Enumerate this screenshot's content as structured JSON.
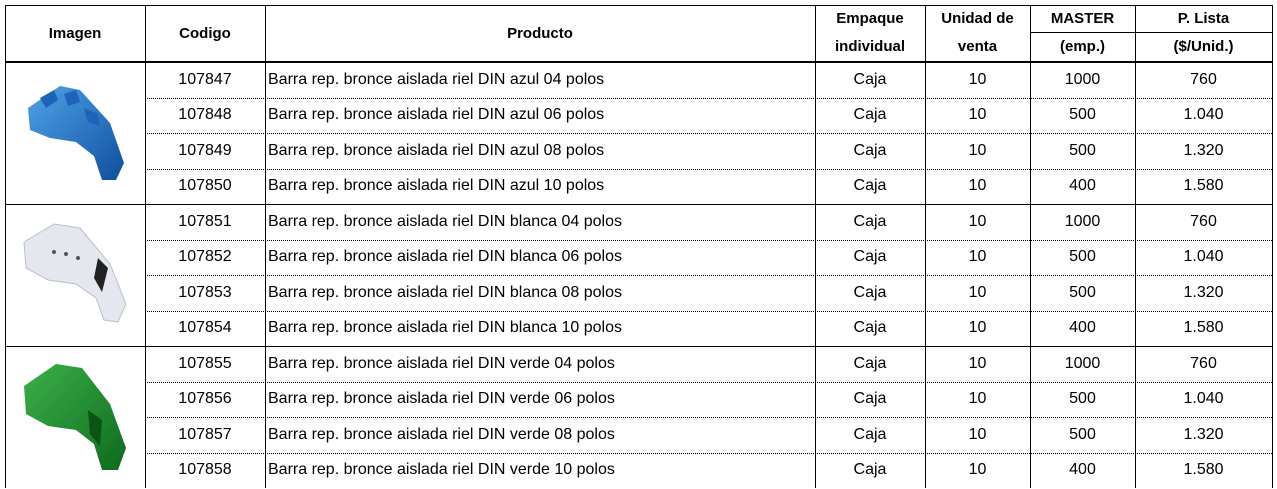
{
  "header": {
    "columns": [
      {
        "lines": [
          "Imagen"
        ]
      },
      {
        "lines": [
          "Codigo"
        ]
      },
      {
        "lines": [
          "Producto"
        ]
      },
      {
        "lines": [
          "Empaque",
          "individual"
        ]
      },
      {
        "lines": [
          "Unidad de",
          "venta"
        ]
      },
      {
        "lines": [
          "MASTER",
          "(emp.)"
        ]
      },
      {
        "lines": [
          "P. Lista",
          "($/Unid.)"
        ]
      }
    ]
  },
  "table": {
    "rows": [
      [
        "107847",
        "Barra rep. bronce aislada riel DIN azul 04 polos",
        "Caja",
        "10",
        "1000",
        "760"
      ],
      [
        "107848",
        "Barra rep. bronce aislada riel DIN azul 06 polos",
        "Caja",
        "10",
        "500",
        "1.040"
      ],
      [
        "107849",
        "Barra rep. bronce aislada riel DIN azul 08 polos",
        "Caja",
        "10",
        "500",
        "1.320"
      ],
      [
        "107850",
        "Barra rep. bronce aislada riel DIN azul 10 polos",
        "Caja",
        "10",
        "400",
        "1.580"
      ],
      [
        "107851",
        "Barra rep. bronce aislada riel DIN blanca 04 polos",
        "Caja",
        "10",
        "1000",
        "760"
      ],
      [
        "107852",
        "Barra rep. bronce aislada riel DIN blanca 06 polos",
        "Caja",
        "10",
        "500",
        "1.040"
      ],
      [
        "107853",
        "Barra rep. bronce aislada riel DIN blanca 08 polos",
        "Caja",
        "10",
        "500",
        "1.320"
      ],
      [
        "107854",
        "Barra rep. bronce aislada riel DIN blanca 10 polos",
        "Caja",
        "10",
        "400",
        "1.580"
      ],
      [
        "107855",
        "Barra rep. bronce aislada riel DIN verde 04 polos",
        "Caja",
        "10",
        "1000",
        "760"
      ],
      [
        "107856",
        "Barra rep. bronce aislada riel DIN verde 06 polos",
        "Caja",
        "10",
        "500",
        "1.040"
      ],
      [
        "107857",
        "Barra rep. bronce aislada riel DIN verde 08 polos",
        "Caja",
        "10",
        "500",
        "1.320"
      ],
      [
        "107858",
        "Barra rep. bronce aislada riel DIN verde 10 polos",
        "Caja",
        "10",
        "400",
        "1.580"
      ]
    ]
  }
}
